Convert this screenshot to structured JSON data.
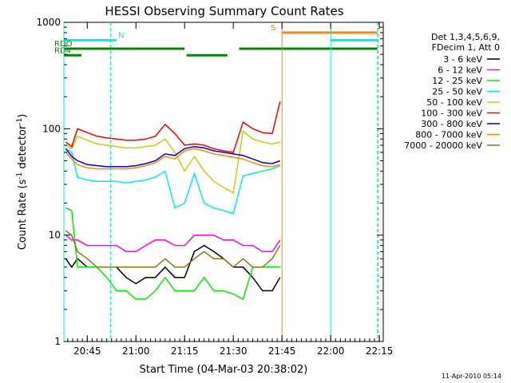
{
  "chart_data": {
    "type": "line",
    "title": "HESSI Observing Summary Count Rates",
    "xlabel": "Start Time (04-Mar-03 20:38:02)",
    "ylabel": "Count Rate (s⁻¹ detector⁻¹)",
    "ylabel_main": "Count Rate (s",
    "ylabel_sup1": "-1",
    "ylabel_mid": " detector",
    "ylabel_sup2": "-1",
    "ylabel_end": ")",
    "yscale": "log",
    "ylim": [
      1,
      1000
    ],
    "xlim_minutes": [
      20.63,
      22.27
    ],
    "x_ticks": [
      {
        "label": "20:45",
        "t": 20.75
      },
      {
        "label": "21:00",
        "t": 21.0
      },
      {
        "label": "21:15",
        "t": 21.25
      },
      {
        "label": "21:30",
        "t": 21.5
      },
      {
        "label": "21:45",
        "t": 21.75
      },
      {
        "label": "22:00",
        "t": 22.0
      },
      {
        "label": "22:15",
        "t": 22.25
      }
    ],
    "y_ticks": [
      {
        "label": "1",
        "v": 1
      },
      {
        "label": "10",
        "v": 10
      },
      {
        "label": "100",
        "v": 100
      },
      {
        "label": "1000",
        "v": 1000
      }
    ],
    "legend_header": [
      "Det 1,3,4,5,6,9,",
      "FDecim 1, Att 0"
    ],
    "legend_position": "right",
    "series": [
      {
        "name": "3 - 6 keV",
        "color": "#000000",
        "x": [
          20.64,
          20.67,
          20.7,
          20.75,
          20.8,
          20.85,
          20.9,
          20.95,
          21.0,
          21.05,
          21.1,
          21.15,
          21.2,
          21.25,
          21.3,
          21.35,
          21.4,
          21.45,
          21.5,
          21.55,
          21.6,
          21.65,
          21.7,
          21.74
        ],
        "y": [
          6,
          5,
          6,
          5,
          5,
          5,
          5,
          4,
          3.5,
          4,
          4,
          5,
          4,
          4,
          7,
          8,
          7,
          6,
          5,
          5,
          4,
          3,
          3,
          4
        ]
      },
      {
        "name": "6 - 12 keV",
        "color": "#ff00ff",
        "x": [
          20.64,
          20.67,
          20.7,
          20.75,
          20.8,
          20.85,
          20.9,
          20.95,
          21.0,
          21.05,
          21.1,
          21.15,
          21.2,
          21.25,
          21.3,
          21.35,
          21.4,
          21.45,
          21.5,
          21.55,
          21.6,
          21.65,
          21.7,
          21.74
        ],
        "y": [
          10,
          9,
          9,
          8,
          8,
          8,
          8,
          7,
          7,
          8,
          9,
          9,
          8,
          8,
          10,
          10,
          10,
          9,
          9,
          8,
          8,
          7,
          7,
          9
        ]
      },
      {
        "name": "12 - 25 keV",
        "color": "#00ee00",
        "x": [
          20.64,
          20.67,
          20.7,
          20.75,
          20.8,
          20.85,
          20.9,
          20.95,
          21.0,
          21.05,
          21.1,
          21.15,
          21.2,
          21.25,
          21.3,
          21.35,
          21.4,
          21.45,
          21.5,
          21.55,
          21.6,
          21.65,
          21.7,
          21.74
        ],
        "y": [
          18,
          17,
          5,
          5,
          5,
          4,
          3,
          3,
          2.5,
          2.5,
          3,
          4,
          3,
          3,
          3,
          4,
          3,
          3,
          2.8,
          2.5,
          5,
          5,
          5,
          5
        ]
      },
      {
        "name": "25 - 50 keV",
        "color": "#00eeee",
        "x": [
          20.64,
          20.67,
          20.7,
          20.75,
          20.8,
          20.85,
          20.9,
          20.95,
          21.0,
          21.05,
          21.1,
          21.15,
          21.2,
          21.25,
          21.3,
          21.35,
          21.4,
          21.45,
          21.5,
          21.55,
          21.6,
          21.65,
          21.7,
          21.74
        ],
        "y": [
          65,
          60,
          35,
          33,
          32,
          32,
          32,
          31,
          32,
          33,
          35,
          40,
          18,
          20,
          38,
          20,
          18,
          17,
          16,
          36,
          38,
          40,
          42,
          45
        ]
      },
      {
        "name": "50 - 100 keV",
        "color": "#cccc00",
        "x": [
          20.64,
          20.67,
          20.7,
          20.75,
          20.8,
          20.85,
          20.9,
          20.95,
          21.0,
          21.05,
          21.1,
          21.15,
          21.2,
          21.25,
          21.3,
          21.35,
          21.4,
          21.45,
          21.5,
          21.55,
          21.6,
          21.65,
          21.7,
          21.74
        ],
        "y": [
          70,
          65,
          85,
          78,
          72,
          70,
          68,
          66,
          66,
          68,
          70,
          80,
          60,
          40,
          55,
          40,
          32,
          28,
          25,
          95,
          80,
          75,
          72,
          75
        ]
      },
      {
        "name": "100 - 300 keV",
        "color": "#ee0000",
        "x": [
          20.64,
          20.67,
          20.7,
          20.75,
          20.8,
          20.85,
          20.9,
          20.95,
          21.0,
          21.05,
          21.1,
          21.15,
          21.2,
          21.25,
          21.3,
          21.35,
          21.4,
          21.45,
          21.5,
          21.55,
          21.6,
          21.65,
          21.7,
          21.74
        ],
        "y": [
          75,
          68,
          100,
          92,
          85,
          82,
          80,
          78,
          78,
          80,
          85,
          110,
          90,
          70,
          72,
          70,
          65,
          62,
          60,
          115,
          100,
          92,
          90,
          180
        ]
      },
      {
        "name": "300 - 800 keV",
        "color": "#0000cc",
        "x": [
          20.64,
          20.67,
          20.7,
          20.75,
          20.8,
          20.85,
          20.9,
          20.95,
          21.0,
          21.05,
          21.1,
          21.15,
          21.2,
          21.25,
          21.3,
          21.35,
          21.4,
          21.45,
          21.5,
          21.55,
          21.6,
          21.65,
          21.7,
          21.74
        ],
        "y": [
          65,
          55,
          50,
          46,
          45,
          44,
          44,
          44,
          45,
          47,
          50,
          58,
          56,
          65,
          68,
          66,
          62,
          60,
          58,
          56,
          52,
          48,
          47,
          50
        ]
      },
      {
        "name": "800 - 7000 keV",
        "color": "#ff8800",
        "x": [
          20.64,
          20.67,
          20.7,
          20.75,
          20.8,
          20.85,
          20.9,
          20.95,
          21.0,
          21.05,
          21.1,
          21.15,
          21.2,
          21.25,
          21.3,
          21.35,
          21.4,
          21.45,
          21.5,
          21.55,
          21.6,
          21.65,
          21.7,
          21.74
        ],
        "y": [
          60,
          52,
          46,
          43,
          42,
          42,
          42,
          42,
          43,
          45,
          48,
          55,
          52,
          62,
          65,
          62,
          58,
          56,
          54,
          52,
          48,
          45,
          44,
          46
        ]
      },
      {
        "name": "7000 - 20000 keV",
        "color": "#887711",
        "x": [
          20.64,
          20.67,
          20.7,
          20.75,
          20.8,
          20.85,
          20.9,
          20.95,
          21.0,
          21.05,
          21.1,
          21.15,
          21.2,
          21.25,
          21.3,
          21.35,
          21.4,
          21.45,
          21.5,
          21.55,
          21.6,
          21.65,
          21.7,
          21.74
        ],
        "y": [
          11,
          10,
          7,
          6,
          5,
          5,
          5,
          5,
          5,
          5,
          5,
          6,
          5,
          5,
          6,
          7,
          6,
          6,
          5,
          6,
          5,
          5,
          6,
          8
        ]
      }
    ],
    "flag_bars": [
      {
        "label": "N",
        "color": "#00eeee",
        "y_value": 680,
        "segments": [
          [
            20.63,
            20.9
          ]
        ]
      },
      {
        "label": "S",
        "color": "#ff8800",
        "y_value": 800,
        "segments": [
          [
            21.75,
            22.24
          ]
        ]
      },
      {
        "label": "",
        "color": "#00eeee",
        "y_value": 680,
        "segments": [
          [
            22.0,
            22.24
          ]
        ]
      },
      {
        "label": "RDO",
        "color": "#008800",
        "y_value": 565,
        "segments": [
          [
            20.63,
            21.25
          ],
          [
            21.53,
            22.24
          ]
        ]
      },
      {
        "label": "RD4",
        "color": "#008800",
        "y_value": 490,
        "segments": [
          [
            20.63,
            20.72
          ],
          [
            21.26,
            21.47
          ]
        ]
      }
    ],
    "vertical_lines": [
      {
        "t": 20.63,
        "color": "#00eeee",
        "style": "solid"
      },
      {
        "t": 20.87,
        "color": "#00eeee",
        "style": "dashed"
      },
      {
        "t": 21.75,
        "color": "#ff8800",
        "style": "solid"
      },
      {
        "t": 22.0,
        "color": "#00eeee",
        "style": "solid"
      },
      {
        "t": 22.24,
        "color": "#00eeee",
        "style": "dashed"
      },
      {
        "t": 22.245,
        "color": "#ff8800",
        "style": "dashed"
      }
    ]
  },
  "footer_timestamp": "11-Apr-2010 05:14"
}
